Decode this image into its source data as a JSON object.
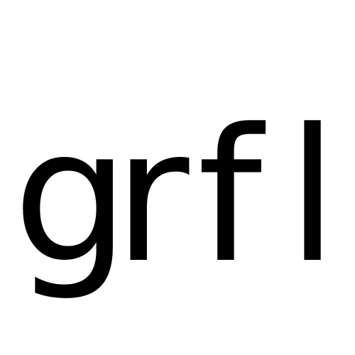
{
  "text": {
    "full": "grfl",
    "chars": [
      "g",
      "r",
      "f",
      "l"
    ]
  },
  "colors": {
    "background": "#ffffff",
    "text": "#000000"
  }
}
